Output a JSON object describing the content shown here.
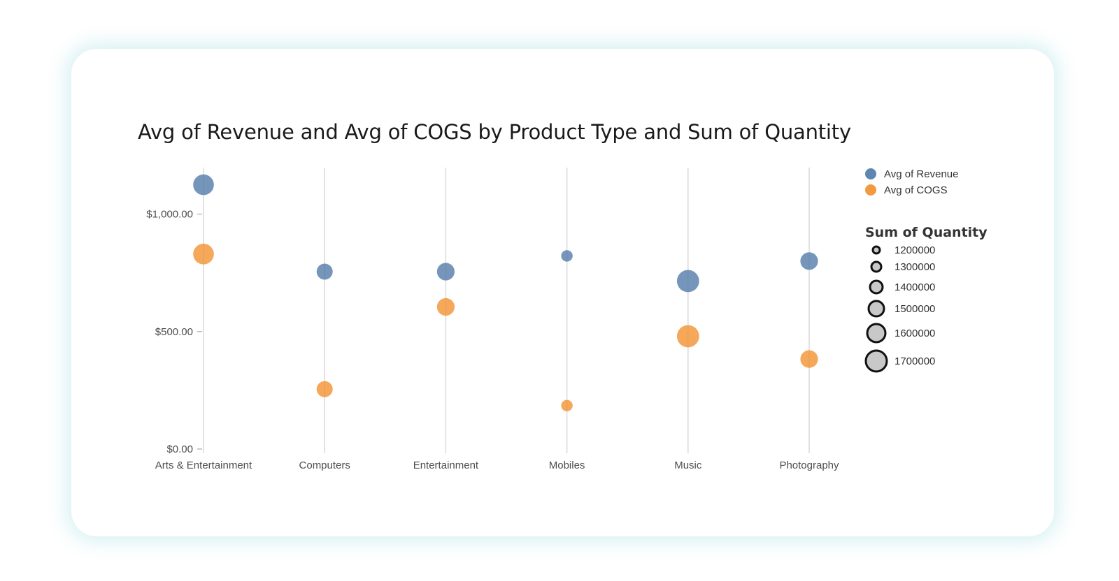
{
  "chart_data": {
    "type": "scatter",
    "title": "Avg of Revenue and Avg of COGS by Product Type and Sum of Quantity",
    "xlabel": "",
    "ylabel": "",
    "categories": [
      "Arts & Entertainment",
      "Computers",
      "Entertainment",
      "Mobiles",
      "Music",
      "Photography"
    ],
    "y_ticks": [
      {
        "value": 0,
        "label": "$0.00"
      },
      {
        "value": 500,
        "label": "$500.00"
      },
      {
        "value": 1000,
        "label": "$1,000.00"
      }
    ],
    "ylim": [
      0,
      1200
    ],
    "series": [
      {
        "name": "Avg of Revenue",
        "color": "#4e79a7",
        "values": [
          1125,
          755,
          755,
          822,
          715,
          800
        ],
        "quantity": [
          1600000,
          1450000,
          1500000,
          1300000,
          1650000,
          1500000
        ]
      },
      {
        "name": "Avg of COGS",
        "color": "#f28e2b",
        "values": [
          830,
          255,
          605,
          185,
          480,
          383
        ],
        "quantity": [
          1600000,
          1450000,
          1500000,
          1300000,
          1650000,
          1500000
        ]
      }
    ],
    "size_legend": {
      "title": "Sum of Quantity",
      "items": [
        {
          "value": 1200000,
          "label": "1200000"
        },
        {
          "value": 1300000,
          "label": "1300000"
        },
        {
          "value": 1400000,
          "label": "1400000"
        },
        {
          "value": 1500000,
          "label": "1500000"
        },
        {
          "value": 1600000,
          "label": "1600000"
        },
        {
          "value": 1700000,
          "label": "1700000"
        }
      ]
    },
    "legend_position": "right",
    "grid": true
  }
}
